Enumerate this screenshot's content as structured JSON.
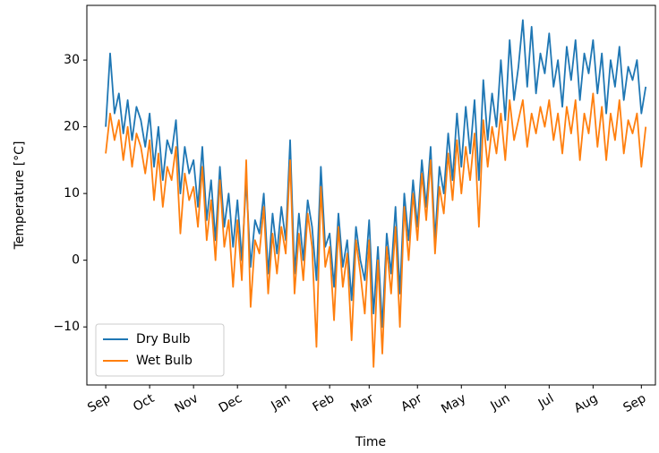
{
  "chart_data": {
    "type": "line",
    "x_label": "Time",
    "y_label": "Temperature [°C]",
    "categories": [
      "Sep",
      null,
      null,
      null,
      null,
      null,
      null,
      null,
      null,
      null,
      "Oct",
      null,
      null,
      null,
      null,
      null,
      null,
      null,
      null,
      null,
      "Nov",
      null,
      null,
      null,
      null,
      null,
      null,
      null,
      null,
      null,
      "Dec",
      null,
      null,
      null,
      null,
      null,
      null,
      null,
      null,
      null,
      null,
      "Jan",
      null,
      null,
      null,
      null,
      null,
      null,
      null,
      null,
      null,
      "Feb",
      null,
      null,
      null,
      null,
      null,
      null,
      null,
      null,
      "Mar",
      null,
      null,
      null,
      null,
      null,
      null,
      null,
      null,
      null,
      null,
      "Apr",
      null,
      null,
      null,
      null,
      null,
      null,
      null,
      null,
      null,
      "May",
      null,
      null,
      null,
      null,
      null,
      null,
      null,
      null,
      null,
      "Jun",
      null,
      null,
      null,
      null,
      null,
      null,
      null,
      null,
      null,
      "Jul",
      null,
      null,
      null,
      null,
      null,
      null,
      null,
      null,
      null,
      "Aug",
      null,
      null,
      null,
      null,
      null,
      null,
      null,
      null,
      null,
      null,
      "Sep",
      null
    ],
    "series": [
      {
        "name": "Dry Bulb",
        "color": "#1f77b4",
        "values": [
          20,
          31,
          22,
          25,
          19,
          24,
          18,
          23,
          21,
          17,
          22,
          14,
          20,
          12,
          18,
          16,
          21,
          10,
          17,
          13,
          15,
          8,
          17,
          6,
          12,
          3,
          14,
          5,
          10,
          2,
          9,
          0,
          12,
          -1,
          6,
          4,
          10,
          -2,
          7,
          1,
          8,
          3,
          18,
          -2,
          7,
          0,
          9,
          5,
          -3,
          14,
          2,
          4,
          -4,
          7,
          -1,
          3,
          -6,
          5,
          0,
          -3,
          6,
          -8,
          2,
          -10,
          4,
          -2,
          8,
          -5,
          10,
          3,
          12,
          5,
          15,
          8,
          17,
          3,
          14,
          10,
          19,
          12,
          22,
          14,
          23,
          16,
          24,
          12,
          27,
          18,
          25,
          20,
          30,
          21,
          33,
          24,
          29,
          36,
          26,
          35,
          25,
          31,
          28,
          34,
          26,
          30,
          23,
          32,
          27,
          33,
          24,
          31,
          28,
          33,
          25,
          31,
          22,
          30,
          26,
          32,
          24,
          29,
          27,
          30,
          22,
          26
        ]
      },
      {
        "name": "Wet Bulb",
        "color": "#ff7f0e",
        "values": [
          16,
          22,
          18,
          21,
          15,
          20,
          14,
          19,
          17,
          13,
          18,
          9,
          16,
          8,
          14,
          12,
          17,
          4,
          13,
          9,
          11,
          5,
          14,
          3,
          9,
          0,
          12,
          2,
          6,
          -4,
          6,
          -3,
          15,
          -7,
          3,
          1,
          8,
          -5,
          4,
          -2,
          5,
          1,
          15,
          -5,
          4,
          -3,
          7,
          2,
          -13,
          11,
          -1,
          2,
          -9,
          5,
          -4,
          1,
          -12,
          3,
          -2,
          -8,
          3,
          -16,
          0,
          -14,
          2,
          -5,
          5,
          -10,
          8,
          0,
          10,
          3,
          13,
          6,
          15,
          1,
          11,
          7,
          16,
          9,
          18,
          10,
          17,
          12,
          19,
          5,
          21,
          14,
          20,
          16,
          22,
          15,
          24,
          18,
          21,
          24,
          17,
          22,
          19,
          23,
          20,
          24,
          18,
          22,
          16,
          23,
          19,
          24,
          15,
          22,
          19,
          25,
          17,
          23,
          15,
          22,
          18,
          24,
          16,
          21,
          19,
          22,
          14,
          20
        ]
      }
    ],
    "ylim": [
      -18.7,
      38.2
    ],
    "yticks": [
      {
        "value": -10,
        "label": "−10"
      },
      0,
      10,
      20,
      30
    ],
    "legend": "lower left"
  }
}
